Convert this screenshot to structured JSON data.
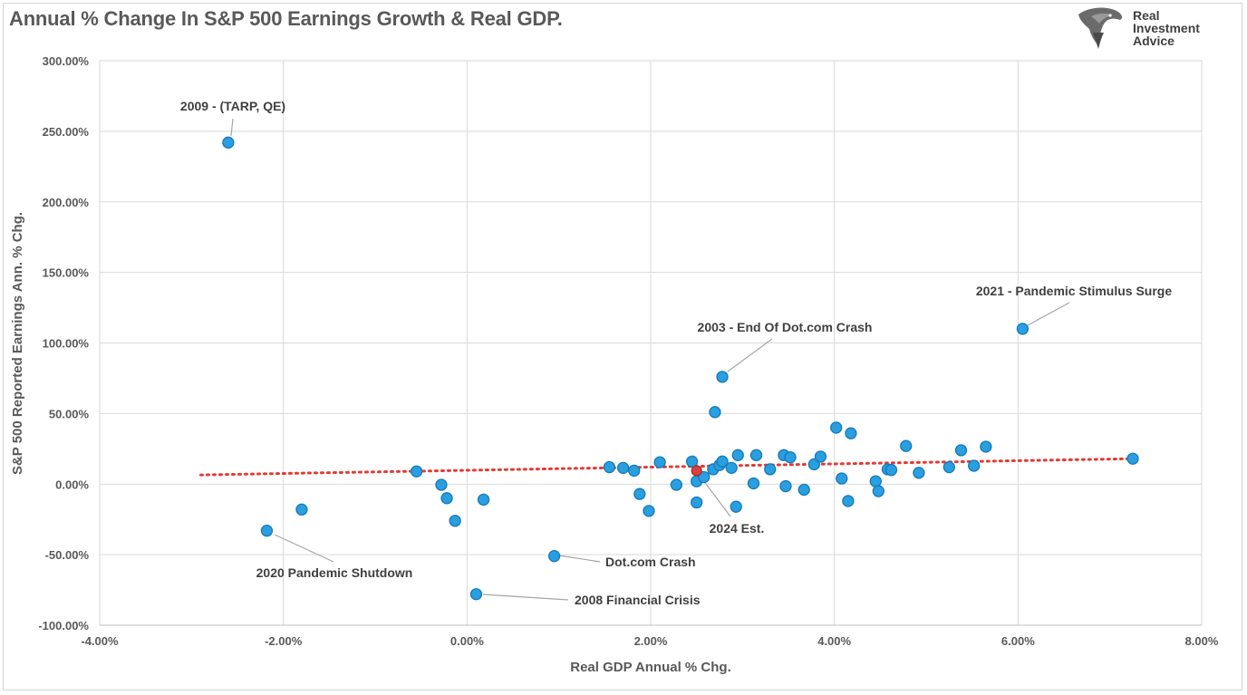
{
  "title": "Annual % Change In S&P 500 Earnings Growth & Real GDP.",
  "logo": {
    "line1": "Real",
    "line2": "Investment",
    "line3": "Advice",
    "icon": "eagle-head-logo-icon"
  },
  "colors": {
    "point": "#2a9fe0",
    "point_stroke": "#1479b8",
    "highlight": "#d9413f",
    "trend": "#e53935",
    "grid": "#d9d9d9",
    "text": "#595959"
  },
  "chart_data": {
    "type": "scatter",
    "title": "Annual % Change In S&P 500 Earnings Growth & Real GDP.",
    "xlabel": "Real GDP Annual % Chg.",
    "ylabel": "S&P 500 Reported Earnings Ann. % Chg.",
    "xlim": [
      -4,
      8
    ],
    "ylim": [
      -100,
      300
    ],
    "x_ticks": [
      -4,
      -2,
      0,
      2,
      4,
      6,
      8
    ],
    "x_tick_labels": [
      "-4.00%",
      "-2.00%",
      "0.00%",
      "2.00%",
      "4.00%",
      "6.00%",
      "8.00%"
    ],
    "y_ticks": [
      -100,
      -50,
      0,
      50,
      100,
      150,
      200,
      250,
      300
    ],
    "y_tick_labels": [
      "-100.00%",
      "-50.00%",
      "0.00%",
      "50.00%",
      "100.00%",
      "150.00%",
      "200.00%",
      "250.00%",
      "300.00%"
    ],
    "grid": true,
    "points": [
      {
        "x": -2.6,
        "y": 242
      },
      {
        "x": -2.18,
        "y": -33
      },
      {
        "x": -1.8,
        "y": -18
      },
      {
        "x": -0.55,
        "y": 9
      },
      {
        "x": -0.28,
        "y": -0.5
      },
      {
        "x": -0.22,
        "y": -10
      },
      {
        "x": -0.13,
        "y": -26
      },
      {
        "x": 0.1,
        "y": -78
      },
      {
        "x": 0.18,
        "y": -11
      },
      {
        "x": 0.95,
        "y": -51
      },
      {
        "x": 1.55,
        "y": 12
      },
      {
        "x": 1.7,
        "y": 11.5
      },
      {
        "x": 1.82,
        "y": 9.5
      },
      {
        "x": 1.88,
        "y": -7
      },
      {
        "x": 1.98,
        "y": -19
      },
      {
        "x": 2.1,
        "y": 15.5
      },
      {
        "x": 2.28,
        "y": -0.5
      },
      {
        "x": 2.45,
        "y": 16
      },
      {
        "x": 2.5,
        "y": 2
      },
      {
        "x": 2.5,
        "y": -13
      },
      {
        "x": 2.58,
        "y": 5
      },
      {
        "x": 2.68,
        "y": 10.5
      },
      {
        "x": 2.7,
        "y": 51
      },
      {
        "x": 2.75,
        "y": 13.5
      },
      {
        "x": 2.78,
        "y": 16
      },
      {
        "x": 2.78,
        "y": 76
      },
      {
        "x": 2.88,
        "y": 11.5
      },
      {
        "x": 2.93,
        "y": -16
      },
      {
        "x": 2.95,
        "y": 20.5
      },
      {
        "x": 3.12,
        "y": 0.5
      },
      {
        "x": 3.15,
        "y": 20.5
      },
      {
        "x": 3.3,
        "y": 10.5
      },
      {
        "x": 3.45,
        "y": 20.5
      },
      {
        "x": 3.47,
        "y": -1.5
      },
      {
        "x": 3.52,
        "y": 19
      },
      {
        "x": 3.67,
        "y": -4
      },
      {
        "x": 3.78,
        "y": 14
      },
      {
        "x": 3.85,
        "y": 19.5
      },
      {
        "x": 4.02,
        "y": 40
      },
      {
        "x": 4.08,
        "y": 4
      },
      {
        "x": 4.15,
        "y": -12
      },
      {
        "x": 4.18,
        "y": 36
      },
      {
        "x": 4.45,
        "y": 2
      },
      {
        "x": 4.48,
        "y": -5
      },
      {
        "x": 4.58,
        "y": 10.5
      },
      {
        "x": 4.62,
        "y": 10
      },
      {
        "x": 4.78,
        "y": 27
      },
      {
        "x": 4.92,
        "y": 8
      },
      {
        "x": 5.25,
        "y": 12
      },
      {
        "x": 5.38,
        "y": 24
      },
      {
        "x": 5.52,
        "y": 13
      },
      {
        "x": 5.65,
        "y": 26.5
      },
      {
        "x": 6.05,
        "y": 110
      },
      {
        "x": 7.25,
        "y": 18
      }
    ],
    "highlight_point": {
      "x": 2.5,
      "y": 9.5,
      "label": "2024 Est."
    },
    "trendline": {
      "style": "dotted",
      "x": [
        -2.9,
        7.25
      ],
      "y": [
        6.5,
        18
      ]
    },
    "annotations": [
      {
        "text": "2009 - (TARP, QE)",
        "x": -2.6,
        "y": 242
      },
      {
        "text": "2021 - Pandemic Stimulus Surge",
        "x": 6.05,
        "y": 110
      },
      {
        "text": "2003 - End Of Dot.com Crash",
        "x": 2.78,
        "y": 76
      },
      {
        "text": "2024 Est.",
        "x": 2.5,
        "y": 9.5
      },
      {
        "text": "Dot.com Crash",
        "x": 0.95,
        "y": -51
      },
      {
        "text": "2020 Pandemic Shutdown",
        "x": -2.18,
        "y": -33
      },
      {
        "text": "2008 Financial Crisis",
        "x": 0.1,
        "y": -78
      }
    ]
  }
}
